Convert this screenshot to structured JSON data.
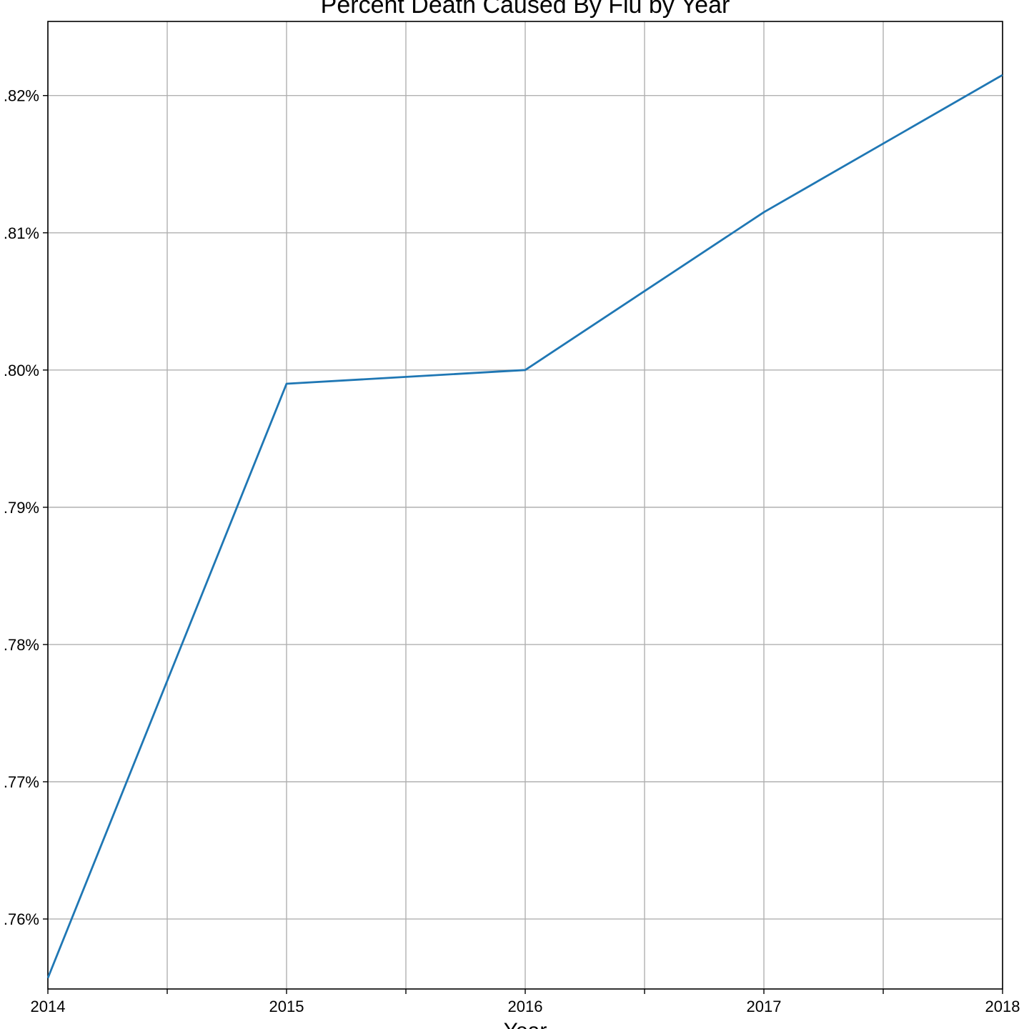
{
  "chart_data": {
    "type": "line",
    "title": "Percent Death Caused By Flu by Year",
    "xlabel": "Year",
    "ylabel": "",
    "x": [
      2014,
      2015,
      2016,
      2017,
      2018
    ],
    "x_ticks_labeled": [
      "2014",
      "2015",
      "2016",
      "2017",
      "2018"
    ],
    "x_minor_ticks": [
      2014.5,
      2015.5,
      2016.5,
      2017.5
    ],
    "xlim": [
      2014,
      2018
    ],
    "series": [
      {
        "values": [
          0.7557,
          0.799,
          0.8,
          0.8115,
          0.8215
        ],
        "color": "#1f77b4"
      }
    ],
    "y_ticks": [
      0.76,
      0.77,
      0.78,
      0.79,
      0.8,
      0.81,
      0.82
    ],
    "y_tick_labels": [
      ".76%",
      ".77%",
      ".78%",
      ".79%",
      ".80%",
      ".81%",
      ".82%"
    ],
    "ylim": [
      0.7549,
      0.8254
    ],
    "grid": true,
    "grid_color": "#b0b0b0",
    "axis_color": "#000000"
  }
}
